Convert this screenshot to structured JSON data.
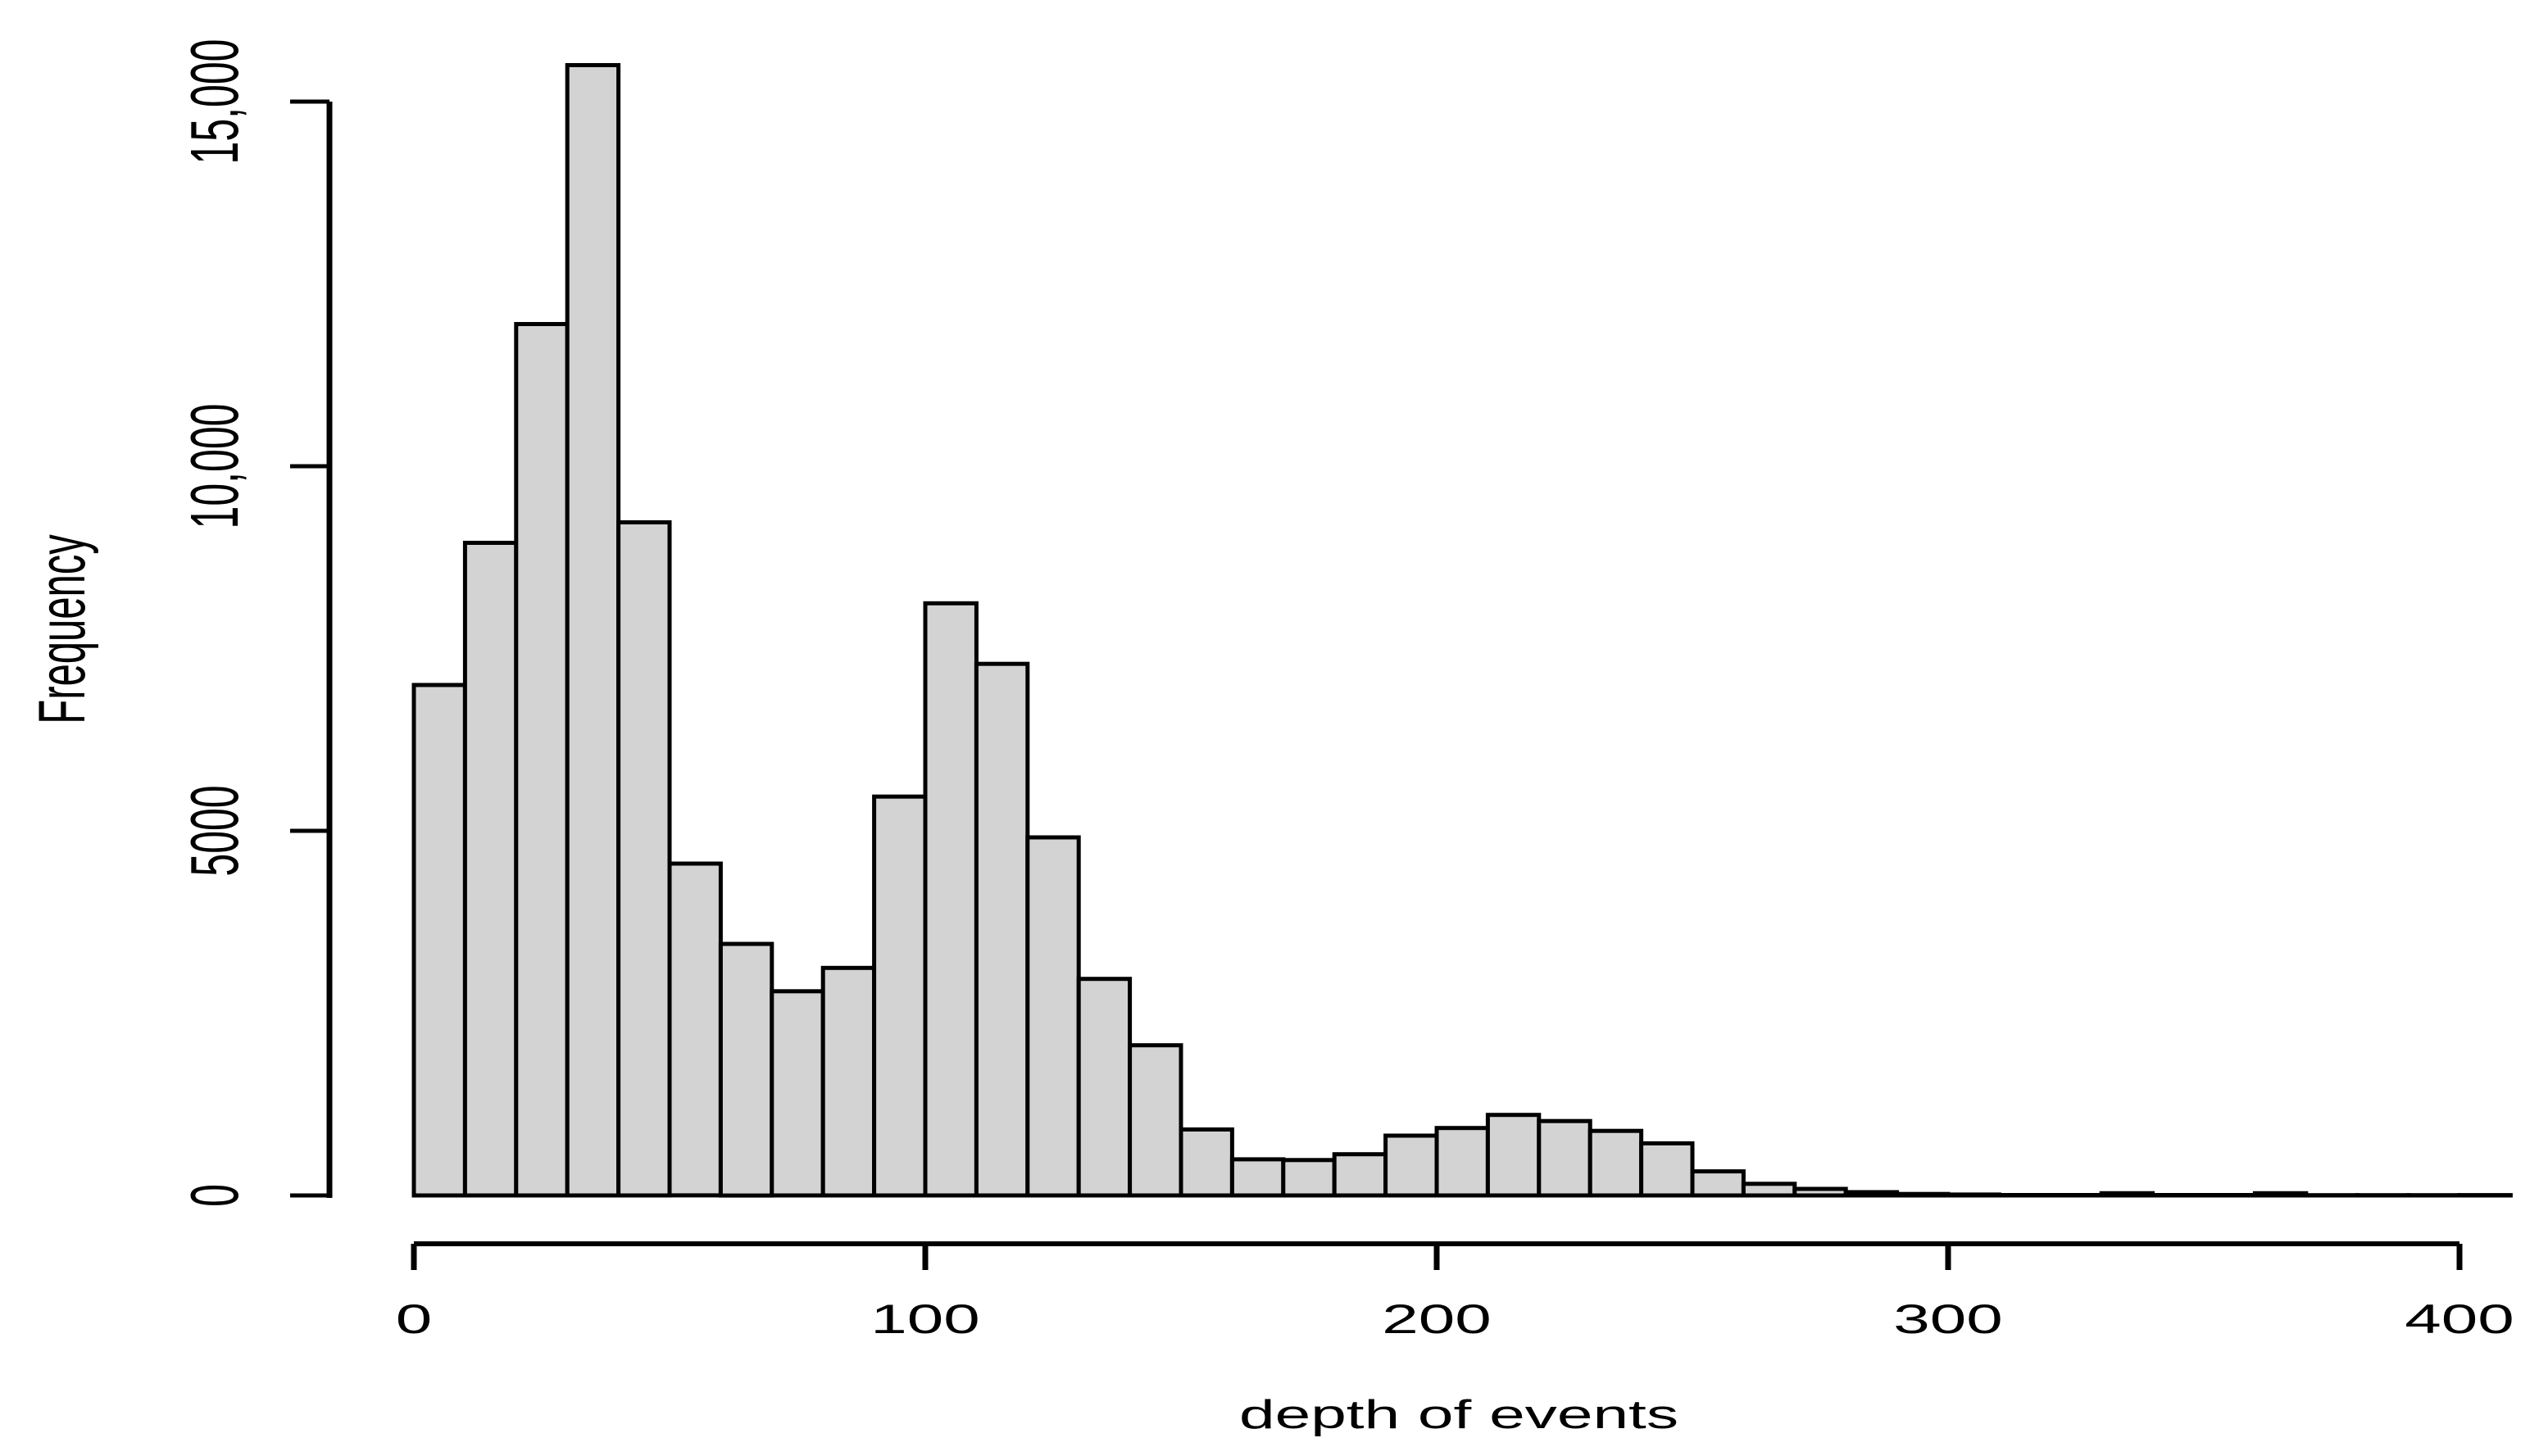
{
  "figure": {
    "background": "#ffffff"
  },
  "chart_data": {
    "type": "bar",
    "subtype": "histogram",
    "title": "",
    "xlabel": "depth of events",
    "ylabel": "Frequency",
    "bin_start": 0,
    "bin_width": 10,
    "bin_edges": [
      0,
      10,
      20,
      30,
      40,
      50,
      60,
      70,
      80,
      90,
      100,
      110,
      120,
      130,
      140,
      150,
      160,
      170,
      180,
      190,
      200,
      210,
      220,
      230,
      240,
      250,
      260,
      270,
      280,
      290,
      300,
      310,
      320,
      330,
      340,
      350,
      360,
      370,
      380,
      390,
      400,
      410
    ],
    "counts": [
      7000,
      8950,
      11950,
      15500,
      9230,
      4550,
      3450,
      2800,
      3120,
      5470,
      8120,
      7290,
      4910,
      2970,
      2060,
      905,
      495,
      485,
      565,
      820,
      925,
      1105,
      1020,
      885,
      715,
      330,
      160,
      90,
      45,
      20,
      12,
      6,
      6,
      30,
      6,
      6,
      30,
      3,
      3,
      3,
      5
    ],
    "x_ticks": [
      0,
      100,
      200,
      300,
      400
    ],
    "x_tick_labels": [
      "0",
      "100",
      "200",
      "300",
      "400"
    ],
    "y_ticks": [
      0,
      5000,
      10000,
      15000
    ],
    "y_tick_labels": [
      "0",
      "5000",
      "10,000",
      "15,000"
    ],
    "xlim": [
      0,
      410
    ],
    "ylim": [
      0,
      15500
    ],
    "grid": false,
    "legend": null,
    "bar_fill": "#d3d3d3",
    "bar_stroke": "#000000",
    "axis_color": "#000000"
  }
}
